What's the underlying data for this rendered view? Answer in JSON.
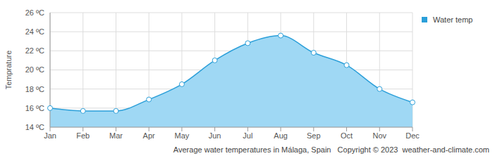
{
  "chart_data": {
    "type": "area",
    "ylabel": "Temprature",
    "annotations": [
      "Average water temperatures in Málaga, Spain",
      "Copyright © 2023  weather-and-climate.com"
    ],
    "categories": [
      "Jan",
      "Feb",
      "Mar",
      "Apr",
      "May",
      "Jun",
      "Jul",
      "Aug",
      "Sep",
      "Oct",
      "Nov",
      "Dec"
    ],
    "series": [
      {
        "name": "Water temp",
        "color": "#2b9fd9",
        "values": [
          16.0,
          15.7,
          15.7,
          16.9,
          18.5,
          21.0,
          22.8,
          23.6,
          21.8,
          20.5,
          18.0,
          16.6
        ]
      }
    ],
    "ylim": [
      14,
      26
    ],
    "yticks": [
      {
        "value": 14,
        "label": "14 ºC"
      },
      {
        "value": 16,
        "label": "16 ºC"
      },
      {
        "value": 18,
        "label": "18 ºC"
      },
      {
        "value": 20,
        "label": "20 ºC"
      },
      {
        "value": 22,
        "label": "22 ºC"
      },
      {
        "value": 24,
        "label": "24 ºC"
      },
      {
        "value": 26,
        "label": "26 ºC"
      }
    ],
    "grid": true,
    "legend": "right",
    "marker": "circle"
  }
}
